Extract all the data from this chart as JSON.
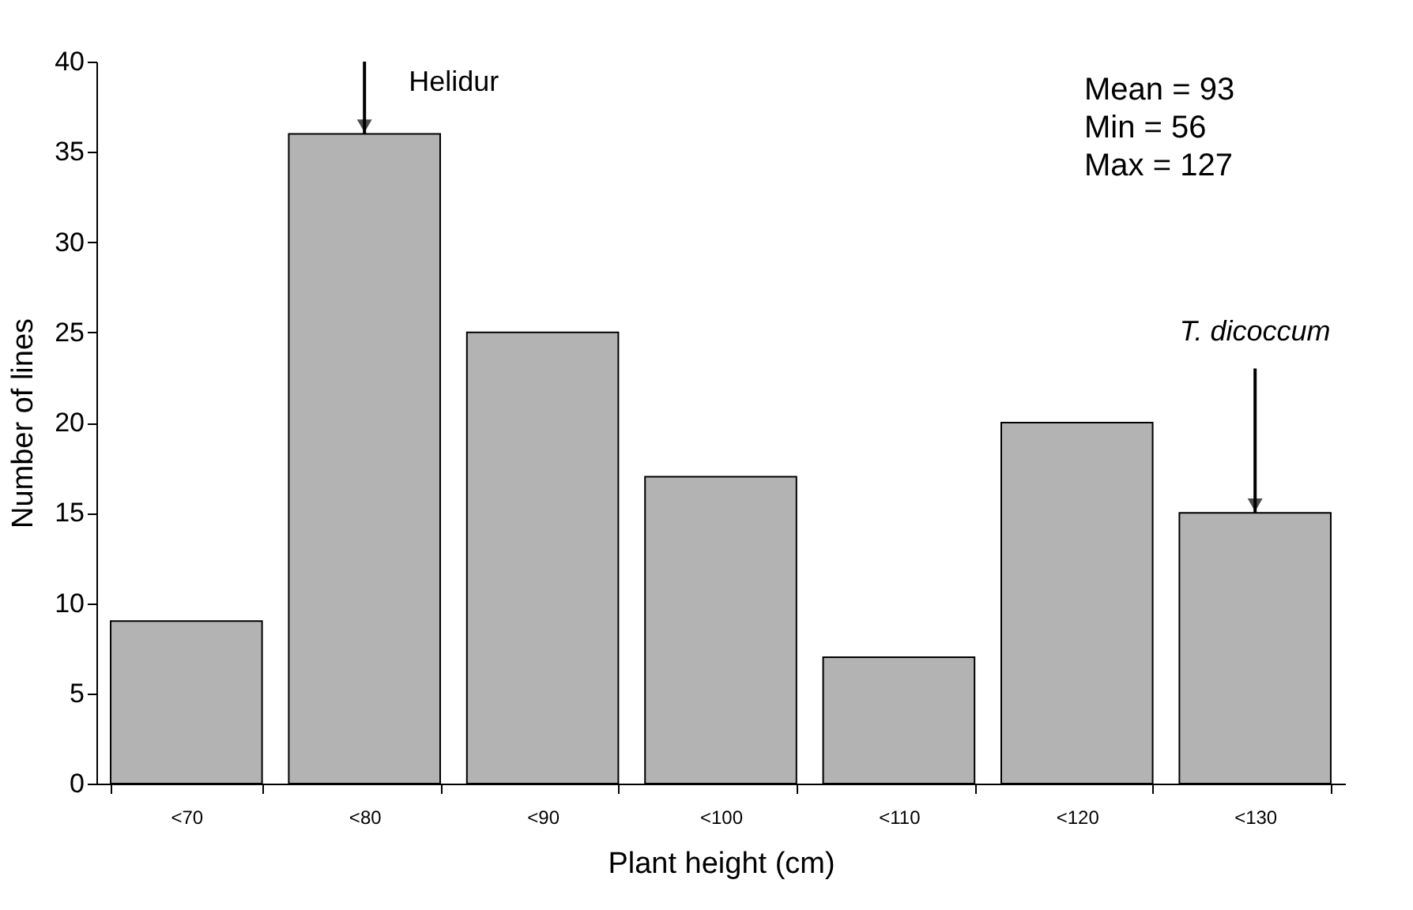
{
  "chart_data": {
    "type": "bar",
    "xlabel": "Plant height (cm)",
    "ylabel": "Number of lines",
    "categories": [
      "<70",
      "<80",
      "<90",
      "<100",
      "<110",
      "<120",
      "<130"
    ],
    "values": [
      9,
      36,
      25,
      17,
      7,
      20,
      15
    ],
    "color": "#b3b3b3",
    "ylim": [
      0,
      40
    ],
    "yticks": [
      0,
      5,
      10,
      15,
      20,
      25,
      30,
      35,
      40
    ],
    "grid": false,
    "annotations": [
      {
        "text": "Helidur",
        "x": "<80",
        "y": 36
      },
      {
        "text": "T. dicoccum",
        "x": "<130",
        "y": 15
      },
      "Mean = 93",
      "Min = 56",
      "Max = 127"
    ]
  }
}
